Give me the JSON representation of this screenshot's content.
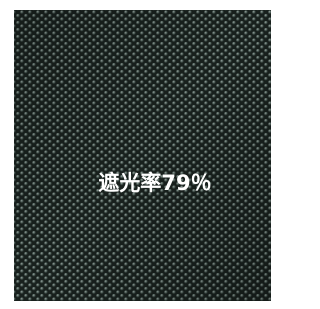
{
  "caption": "遮光率79％"
}
